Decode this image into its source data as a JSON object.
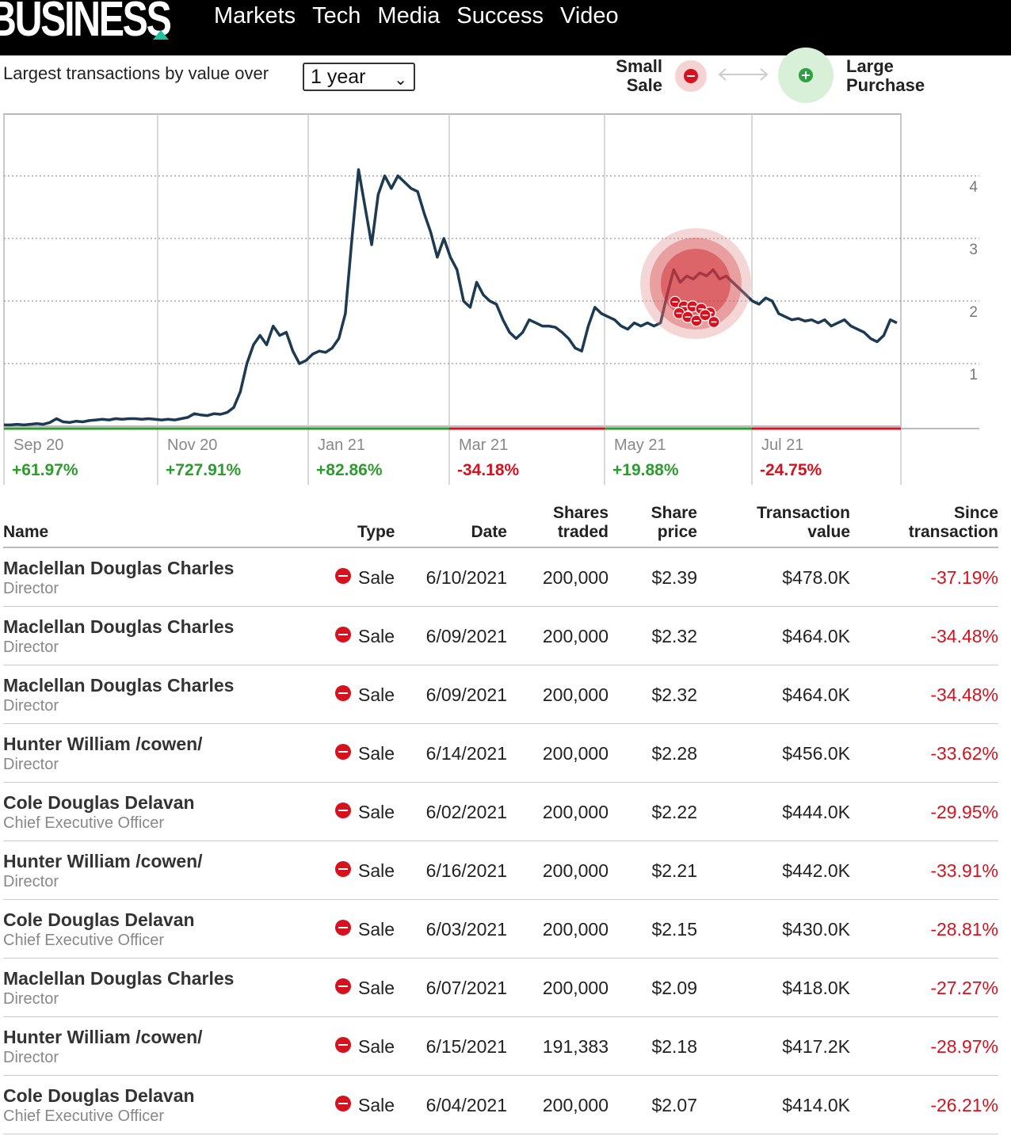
{
  "header": {
    "logo_text": "BUSINESS",
    "nav": [
      "Markets",
      "Tech",
      "Media",
      "Success",
      "Video"
    ]
  },
  "controls": {
    "label": "Largest transactions by value over",
    "period_selected": "1 year",
    "legend_small_line1": "Small",
    "legend_small_line2": "Sale",
    "legend_large_line1": "Large",
    "legend_large_line2": "Purchase"
  },
  "colors": {
    "sale": "#d6121f",
    "purchase": "#2ea043",
    "line": "#1c3a52",
    "positive": "#2e9b2e",
    "negative": "#d6121f"
  },
  "chart_data": {
    "type": "line",
    "ylim": [
      0,
      5
    ],
    "y_ticks": [
      "1",
      "2",
      "3",
      "4"
    ],
    "periods": [
      {
        "label": "Sep 20",
        "change": "+61.97%",
        "trend": "up"
      },
      {
        "label": "Nov 20",
        "change": "+727.91%",
        "trend": "up"
      },
      {
        "label": "Jan 21",
        "change": "+82.86%",
        "trend": "up"
      },
      {
        "label": "Mar 21",
        "change": "-34.18%",
        "trend": "down"
      },
      {
        "label": "May 21",
        "change": "+19.88%",
        "trend": "up"
      },
      {
        "label": "Jul 21",
        "change": "-24.75%",
        "trend": "down"
      }
    ],
    "series": [
      {
        "values": [
          0.02,
          0.02,
          0.03,
          0.02,
          0.03,
          0.04,
          0.03,
          0.06,
          0.12,
          0.07,
          0.06,
          0.08,
          0.07,
          0.09,
          0.1,
          0.11,
          0.1,
          0.12,
          0.11,
          0.12,
          0.12,
          0.11,
          0.12,
          0.11,
          0.1,
          0.11,
          0.1,
          0.12,
          0.14,
          0.2,
          0.18,
          0.17,
          0.2,
          0.19,
          0.22,
          0.3,
          0.55,
          1.0,
          1.3,
          1.45,
          1.3,
          1.6,
          1.45,
          1.5,
          1.2,
          1.0,
          1.05,
          1.15,
          1.2,
          1.18,
          1.25,
          1.4,
          1.8,
          3.0,
          4.1,
          3.5,
          2.9,
          3.7,
          4.0,
          3.8,
          4.0,
          3.9,
          3.8,
          3.75,
          3.4,
          3.1,
          2.7,
          3.0,
          2.7,
          2.5,
          2.0,
          1.9,
          2.3,
          2.1,
          2.0,
          1.95,
          1.7,
          1.5,
          1.4,
          1.5,
          1.7,
          1.65,
          1.6,
          1.6,
          1.58,
          1.5,
          1.4,
          1.25,
          1.2,
          1.6,
          1.9,
          1.8,
          1.75,
          1.7,
          1.6,
          1.55,
          1.65,
          1.6,
          1.65,
          1.6,
          1.65,
          2.1,
          2.5,
          2.3,
          2.4,
          2.35,
          2.45,
          2.4,
          2.5,
          2.35,
          2.4,
          2.3,
          2.2,
          2.1,
          2.0,
          1.95,
          2.05,
          2.0,
          1.8,
          1.75,
          1.7,
          1.72,
          1.68,
          1.7,
          1.65,
          1.7,
          1.6,
          1.65,
          1.7,
          1.6,
          1.55,
          1.5,
          1.4,
          1.35,
          1.45,
          1.7,
          1.65
        ]
      }
    ],
    "transaction_markers": [
      {
        "price": 2.39
      },
      {
        "price": 2.32
      },
      {
        "price": 2.32
      },
      {
        "price": 2.28
      },
      {
        "price": 2.22
      },
      {
        "price": 2.21
      },
      {
        "price": 2.15
      },
      {
        "price": 2.09
      },
      {
        "price": 2.18
      },
      {
        "price": 2.07
      }
    ]
  },
  "table": {
    "headers": {
      "name": "Name",
      "type": "Type",
      "date": "Date",
      "shares_1": "Shares",
      "shares_2": "traded",
      "price_1": "Share",
      "price_2": "price",
      "value_1": "Transaction",
      "value_2": "value",
      "since_1": "Since",
      "since_2": "transaction"
    },
    "rows": [
      {
        "name": "Maclellan Douglas Charles",
        "title": "Director",
        "type": "Sale",
        "date": "6/10/2021",
        "shares": "200,000",
        "price": "$2.39",
        "value": "$478.0K",
        "since": "-37.19%"
      },
      {
        "name": "Maclellan Douglas Charles",
        "title": "Director",
        "type": "Sale",
        "date": "6/09/2021",
        "shares": "200,000",
        "price": "$2.32",
        "value": "$464.0K",
        "since": "-34.48%"
      },
      {
        "name": "Maclellan Douglas Charles",
        "title": "Director",
        "type": "Sale",
        "date": "6/09/2021",
        "shares": "200,000",
        "price": "$2.32",
        "value": "$464.0K",
        "since": "-34.48%"
      },
      {
        "name": "Hunter William /cowen/",
        "title": "Director",
        "type": "Sale",
        "date": "6/14/2021",
        "shares": "200,000",
        "price": "$2.28",
        "value": "$456.0K",
        "since": "-33.62%"
      },
      {
        "name": "Cole Douglas Delavan",
        "title": "Chief Executive Officer",
        "type": "Sale",
        "date": "6/02/2021",
        "shares": "200,000",
        "price": "$2.22",
        "value": "$444.0K",
        "since": "-29.95%"
      },
      {
        "name": "Hunter William /cowen/",
        "title": "Director",
        "type": "Sale",
        "date": "6/16/2021",
        "shares": "200,000",
        "price": "$2.21",
        "value": "$442.0K",
        "since": "-33.91%"
      },
      {
        "name": "Cole Douglas Delavan",
        "title": "Chief Executive Officer",
        "type": "Sale",
        "date": "6/03/2021",
        "shares": "200,000",
        "price": "$2.15",
        "value": "$430.0K",
        "since": "-28.81%"
      },
      {
        "name": "Maclellan Douglas Charles",
        "title": "Director",
        "type": "Sale",
        "date": "6/07/2021",
        "shares": "200,000",
        "price": "$2.09",
        "value": "$418.0K",
        "since": "-27.27%"
      },
      {
        "name": "Hunter William /cowen/",
        "title": "Director",
        "type": "Sale",
        "date": "6/15/2021",
        "shares": "191,383",
        "price": "$2.18",
        "value": "$417.2K",
        "since": "-28.97%"
      },
      {
        "name": "Cole Douglas Delavan",
        "title": "Chief Executive Officer",
        "type": "Sale",
        "date": "6/04/2021",
        "shares": "200,000",
        "price": "$2.07",
        "value": "$414.0K",
        "since": "-26.21%"
      }
    ]
  }
}
